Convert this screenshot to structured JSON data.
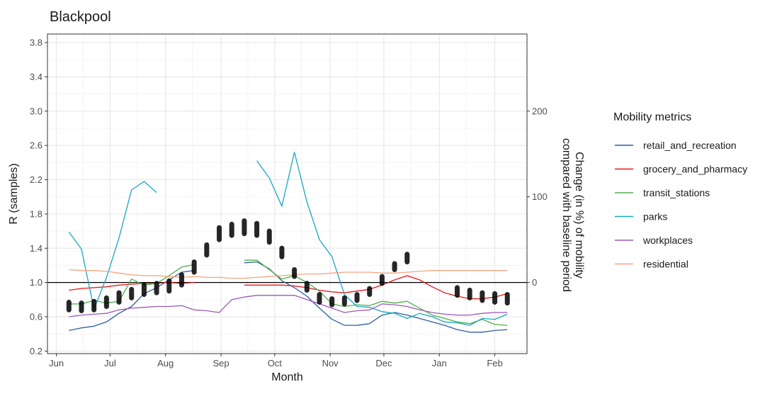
{
  "chart_data": {
    "type": "line",
    "title": "Blackpool",
    "xlabel": "Month",
    "ylabel": "R (samples)",
    "y2label_line1": "Change (in %) of mobility",
    "y2label_line2": "compared with baseline period",
    "x_ticks": [
      "Jun",
      "Jul",
      "Aug",
      "Sep",
      "Oct",
      "Nov",
      "Dec",
      "Jan",
      "Feb"
    ],
    "x_tick_dates": [
      "2020-06-01",
      "2020-07-01",
      "2020-08-01",
      "2020-09-01",
      "2020-10-01",
      "2020-11-01",
      "2020-12-01",
      "2021-01-01",
      "2021-02-01"
    ],
    "xlim": [
      "2020-05-27",
      "2021-02-19"
    ],
    "ylim": [
      0.17,
      3.9
    ],
    "y_ticks": [
      "0.2",
      "0.6",
      "1.0",
      "1.4",
      "1.8",
      "2.2",
      "2.6",
      "3.0",
      "3.4",
      "3.8"
    ],
    "y2_ticks": [
      "0",
      "100",
      "200"
    ],
    "y2_scale_note": "secondary axis: 0% at R=1.0, 100% at R=2.0",
    "reference_line_y": 1.0,
    "grid": true,
    "legend_title": "Mobility metrics",
    "legend_position": "right",
    "r_samples": {
      "color": "#000000",
      "dates": [
        "2020-06-08",
        "2020-06-15",
        "2020-06-22",
        "2020-06-29",
        "2020-07-06",
        "2020-07-13",
        "2020-07-20",
        "2020-07-27",
        "2020-08-03",
        "2020-08-10",
        "2020-08-17",
        "2020-08-24",
        "2020-08-31",
        "2020-09-07",
        "2020-09-14",
        "2020-09-21",
        "2020-09-28",
        "2020-10-05",
        "2020-10-12",
        "2020-10-19",
        "2020-10-26",
        "2020-11-02",
        "2020-11-09",
        "2020-11-16",
        "2020-11-23",
        "2020-11-30",
        "2020-12-07",
        "2020-12-14",
        "2021-01-11",
        "2021-01-18",
        "2021-01-25",
        "2021-02-01",
        "2021-02-08"
      ],
      "low": [
        0.68,
        0.67,
        0.68,
        0.72,
        0.77,
        0.82,
        0.86,
        0.88,
        0.9,
        0.97,
        1.12,
        1.32,
        1.5,
        1.55,
        1.57,
        1.55,
        1.47,
        1.3,
        1.07,
        0.91,
        0.77,
        0.74,
        0.75,
        0.79,
        0.86,
        0.99,
        1.15,
        1.24,
        0.85,
        0.82,
        0.79,
        0.77,
        0.76
      ],
      "high": [
        0.77,
        0.76,
        0.78,
        0.82,
        0.88,
        0.92,
        0.97,
        0.99,
        1.02,
        1.09,
        1.24,
        1.44,
        1.64,
        1.68,
        1.72,
        1.69,
        1.6,
        1.4,
        1.15,
        0.99,
        0.86,
        0.81,
        0.82,
        0.86,
        0.93,
        1.07,
        1.22,
        1.33,
        0.94,
        0.91,
        0.88,
        0.87,
        0.86
      ]
    },
    "series": [
      {
        "name": "retail_and_recreation",
        "color": "#2c5fa0",
        "segments": [
          [
            [
              "2020-06-08",
              -56
            ],
            [
              "2020-06-15",
              -53
            ],
            [
              "2020-06-22",
              -51
            ],
            [
              "2020-06-29",
              -46
            ],
            [
              "2020-07-06",
              -36
            ],
            [
              "2020-07-13",
              -28
            ],
            [
              "2020-07-20",
              -13
            ],
            [
              "2020-07-27",
              -6
            ],
            [
              "2020-08-03",
              3
            ],
            [
              "2020-08-10",
              12
            ],
            [
              "2020-08-17",
              14
            ]
          ],
          [
            [
              "2020-09-14",
              23
            ],
            [
              "2020-09-21",
              24
            ],
            [
              "2020-09-28",
              16
            ],
            [
              "2020-10-05",
              2
            ],
            [
              "2020-10-12",
              -6
            ],
            [
              "2020-10-19",
              -16
            ],
            [
              "2020-10-26",
              -30
            ],
            [
              "2020-11-02",
              -43
            ],
            [
              "2020-11-09",
              -50
            ],
            [
              "2020-11-16",
              -50
            ],
            [
              "2020-11-23",
              -48
            ],
            [
              "2020-11-30",
              -38
            ],
            [
              "2020-12-07",
              -35
            ],
            [
              "2020-12-14",
              -38
            ],
            [
              "2020-12-21",
              -42
            ],
            [
              "2020-12-28",
              -46
            ],
            [
              "2021-01-04",
              -50
            ],
            [
              "2021-01-11",
              -55
            ],
            [
              "2021-01-18",
              -58
            ],
            [
              "2021-01-25",
              -58
            ],
            [
              "2021-02-01",
              -56
            ],
            [
              "2021-02-08",
              -55
            ]
          ]
        ]
      },
      {
        "name": "grocery_and_pharmacy",
        "color": "#e8141c",
        "segments": [
          [
            [
              "2020-06-08",
              -9
            ],
            [
              "2020-06-15",
              -7
            ],
            [
              "2020-06-22",
              -6
            ],
            [
              "2020-06-29",
              -5
            ],
            [
              "2020-07-06",
              -3
            ],
            [
              "2020-07-13",
              -2
            ],
            [
              "2020-07-20",
              -1
            ],
            [
              "2020-07-27",
              -1
            ],
            [
              "2020-08-03",
              0
            ],
            [
              "2020-08-10",
              -1
            ],
            [
              "2020-08-17",
              0
            ]
          ],
          [
            [
              "2020-09-14",
              -3
            ],
            [
              "2020-09-21",
              -3
            ],
            [
              "2020-09-28",
              -3
            ],
            [
              "2020-10-05",
              -3
            ],
            [
              "2020-10-12",
              -4
            ],
            [
              "2020-10-19",
              -6
            ],
            [
              "2020-10-26",
              -9
            ],
            [
              "2020-11-02",
              -11
            ],
            [
              "2020-11-09",
              -12
            ],
            [
              "2020-11-16",
              -10
            ],
            [
              "2020-11-23",
              -8
            ],
            [
              "2020-11-30",
              -3
            ],
            [
              "2020-12-07",
              3
            ],
            [
              "2020-12-14",
              8
            ],
            [
              "2020-12-21",
              3
            ],
            [
              "2020-12-28",
              -5
            ],
            [
              "2021-01-04",
              -12
            ],
            [
              "2021-01-11",
              -16
            ],
            [
              "2021-01-18",
              -19
            ],
            [
              "2021-01-25",
              -19
            ],
            [
              "2021-02-01",
              -17
            ],
            [
              "2021-02-08",
              -13
            ]
          ]
        ]
      },
      {
        "name": "transit_stations",
        "color": "#4daf4a",
        "segments": [
          [
            [
              "2020-06-08",
              -25
            ],
            [
              "2020-06-15",
              -25
            ],
            [
              "2020-06-22",
              -21
            ],
            [
              "2020-06-29",
              -24
            ],
            [
              "2020-07-06",
              -22
            ],
            [
              "2020-07-13",
              4
            ],
            [
              "2020-07-20",
              -3
            ],
            [
              "2020-07-27",
              -1
            ],
            [
              "2020-08-03",
              8
            ],
            [
              "2020-08-10",
              18
            ],
            [
              "2020-08-17",
              21
            ]
          ],
          [
            [
              "2020-09-14",
              26
            ],
            [
              "2020-09-21",
              26
            ],
            [
              "2020-09-28",
              15
            ],
            [
              "2020-10-05",
              4
            ],
            [
              "2020-10-12",
              8
            ],
            [
              "2020-10-19",
              0
            ],
            [
              "2020-10-26",
              -10
            ],
            [
              "2020-11-02",
              -25
            ],
            [
              "2020-11-09",
              -28
            ],
            [
              "2020-11-16",
              -26
            ],
            [
              "2020-11-23",
              -27
            ],
            [
              "2020-11-30",
              -22
            ],
            [
              "2020-12-07",
              -24
            ],
            [
              "2020-12-14",
              -22
            ],
            [
              "2020-12-21",
              -30
            ],
            [
              "2020-12-28",
              -38
            ],
            [
              "2021-01-04",
              -42
            ],
            [
              "2021-01-11",
              -46
            ],
            [
              "2021-01-18",
              -48
            ],
            [
              "2021-01-25",
              -43
            ],
            [
              "2021-02-01",
              -49
            ],
            [
              "2021-02-08",
              -50
            ]
          ]
        ]
      },
      {
        "name": "parks",
        "color": "#17a6c6",
        "segments": [
          [
            [
              "2020-06-08",
              59
            ],
            [
              "2020-06-15",
              39
            ],
            [
              "2020-06-22",
              -31
            ],
            [
              "2020-06-29",
              6
            ],
            [
              "2020-07-06",
              52
            ],
            [
              "2020-07-13",
              108
            ],
            [
              "2020-07-20",
              118
            ],
            [
              "2020-07-27",
              105
            ]
          ],
          [
            [
              "2020-09-21",
              142
            ],
            [
              "2020-09-28",
              122
            ],
            [
              "2020-10-05",
              89
            ],
            [
              "2020-10-12",
              152
            ],
            [
              "2020-10-19",
              94
            ],
            [
              "2020-10-26",
              50
            ],
            [
              "2020-11-02",
              30
            ],
            [
              "2020-11-09",
              -14
            ],
            [
              "2020-11-16",
              -28
            ],
            [
              "2020-11-23",
              -29
            ],
            [
              "2020-11-30",
              -34
            ],
            [
              "2020-12-07",
              -36
            ],
            [
              "2020-12-14",
              -42
            ],
            [
              "2020-12-21",
              -36
            ],
            [
              "2020-12-28",
              -40
            ],
            [
              "2021-01-04",
              -46
            ],
            [
              "2021-01-11",
              -47
            ],
            [
              "2021-01-18",
              -50
            ],
            [
              "2021-01-25",
              -42
            ],
            [
              "2021-02-01",
              -43
            ],
            [
              "2021-02-08",
              -37
            ]
          ]
        ]
      },
      {
        "name": "workplaces",
        "color": "#9b59b6",
        "segments": [
          [
            [
              "2020-06-08",
              -40
            ],
            [
              "2020-06-15",
              -38
            ],
            [
              "2020-06-22",
              -37
            ],
            [
              "2020-06-29",
              -36
            ],
            [
              "2020-07-06",
              -32
            ],
            [
              "2020-07-13",
              -30
            ],
            [
              "2020-07-20",
              -29
            ],
            [
              "2020-07-27",
              -28
            ],
            [
              "2020-08-03",
              -28
            ],
            [
              "2020-08-10",
              -27
            ],
            [
              "2020-08-17",
              -32
            ],
            [
              "2020-08-24",
              -33
            ],
            [
              "2020-08-31",
              -35
            ],
            [
              "2020-09-07",
              -20
            ],
            [
              "2020-09-14",
              -17
            ],
            [
              "2020-09-21",
              -15
            ],
            [
              "2020-09-28",
              -15
            ],
            [
              "2020-10-05",
              -15
            ],
            [
              "2020-10-12",
              -15
            ],
            [
              "2020-10-19",
              -20
            ],
            [
              "2020-10-26",
              -25
            ],
            [
              "2020-11-02",
              -30
            ],
            [
              "2020-11-09",
              -35
            ],
            [
              "2020-11-16",
              -33
            ],
            [
              "2020-11-23",
              -32
            ],
            [
              "2020-11-30",
              -25
            ],
            [
              "2020-12-07",
              -26
            ],
            [
              "2020-12-14",
              -28
            ],
            [
              "2020-12-21",
              -32
            ],
            [
              "2020-12-28",
              -35
            ],
            [
              "2021-01-04",
              -37
            ],
            [
              "2021-01-11",
              -38
            ],
            [
              "2021-01-18",
              -38
            ],
            [
              "2021-01-25",
              -36
            ],
            [
              "2021-02-01",
              -35
            ],
            [
              "2021-02-08",
              -35
            ]
          ]
        ]
      },
      {
        "name": "residential",
        "color": "#f4a582",
        "segments": [
          [
            [
              "2020-06-08",
              15
            ],
            [
              "2020-06-15",
              14
            ],
            [
              "2020-06-22",
              14
            ],
            [
              "2020-06-29",
              13
            ],
            [
              "2020-07-06",
              11
            ],
            [
              "2020-07-13",
              9
            ],
            [
              "2020-07-20",
              8
            ],
            [
              "2020-07-27",
              8
            ],
            [
              "2020-08-03",
              7
            ],
            [
              "2020-08-10",
              6
            ],
            [
              "2020-08-17",
              7
            ],
            [
              "2020-08-24",
              6
            ],
            [
              "2020-08-31",
              6
            ],
            [
              "2020-09-07",
              5
            ],
            [
              "2020-09-14",
              5
            ],
            [
              "2020-09-21",
              6
            ],
            [
              "2020-09-28",
              7
            ],
            [
              "2020-10-05",
              8
            ],
            [
              "2020-10-12",
              9
            ],
            [
              "2020-10-19",
              10
            ],
            [
              "2020-10-26",
              10
            ],
            [
              "2020-11-02",
              11
            ],
            [
              "2020-11-09",
              12
            ],
            [
              "2020-11-16",
              12
            ],
            [
              "2020-11-23",
              12
            ],
            [
              "2020-11-30",
              11
            ],
            [
              "2020-12-07",
              11
            ],
            [
              "2020-12-14",
              12
            ],
            [
              "2020-12-21",
              13
            ],
            [
              "2020-12-28",
              14
            ],
            [
              "2021-01-04",
              14
            ],
            [
              "2021-01-11",
              14
            ],
            [
              "2021-01-18",
              14
            ],
            [
              "2021-01-25",
              14
            ],
            [
              "2021-02-01",
              14
            ],
            [
              "2021-02-08",
              14
            ]
          ]
        ]
      }
    ]
  }
}
